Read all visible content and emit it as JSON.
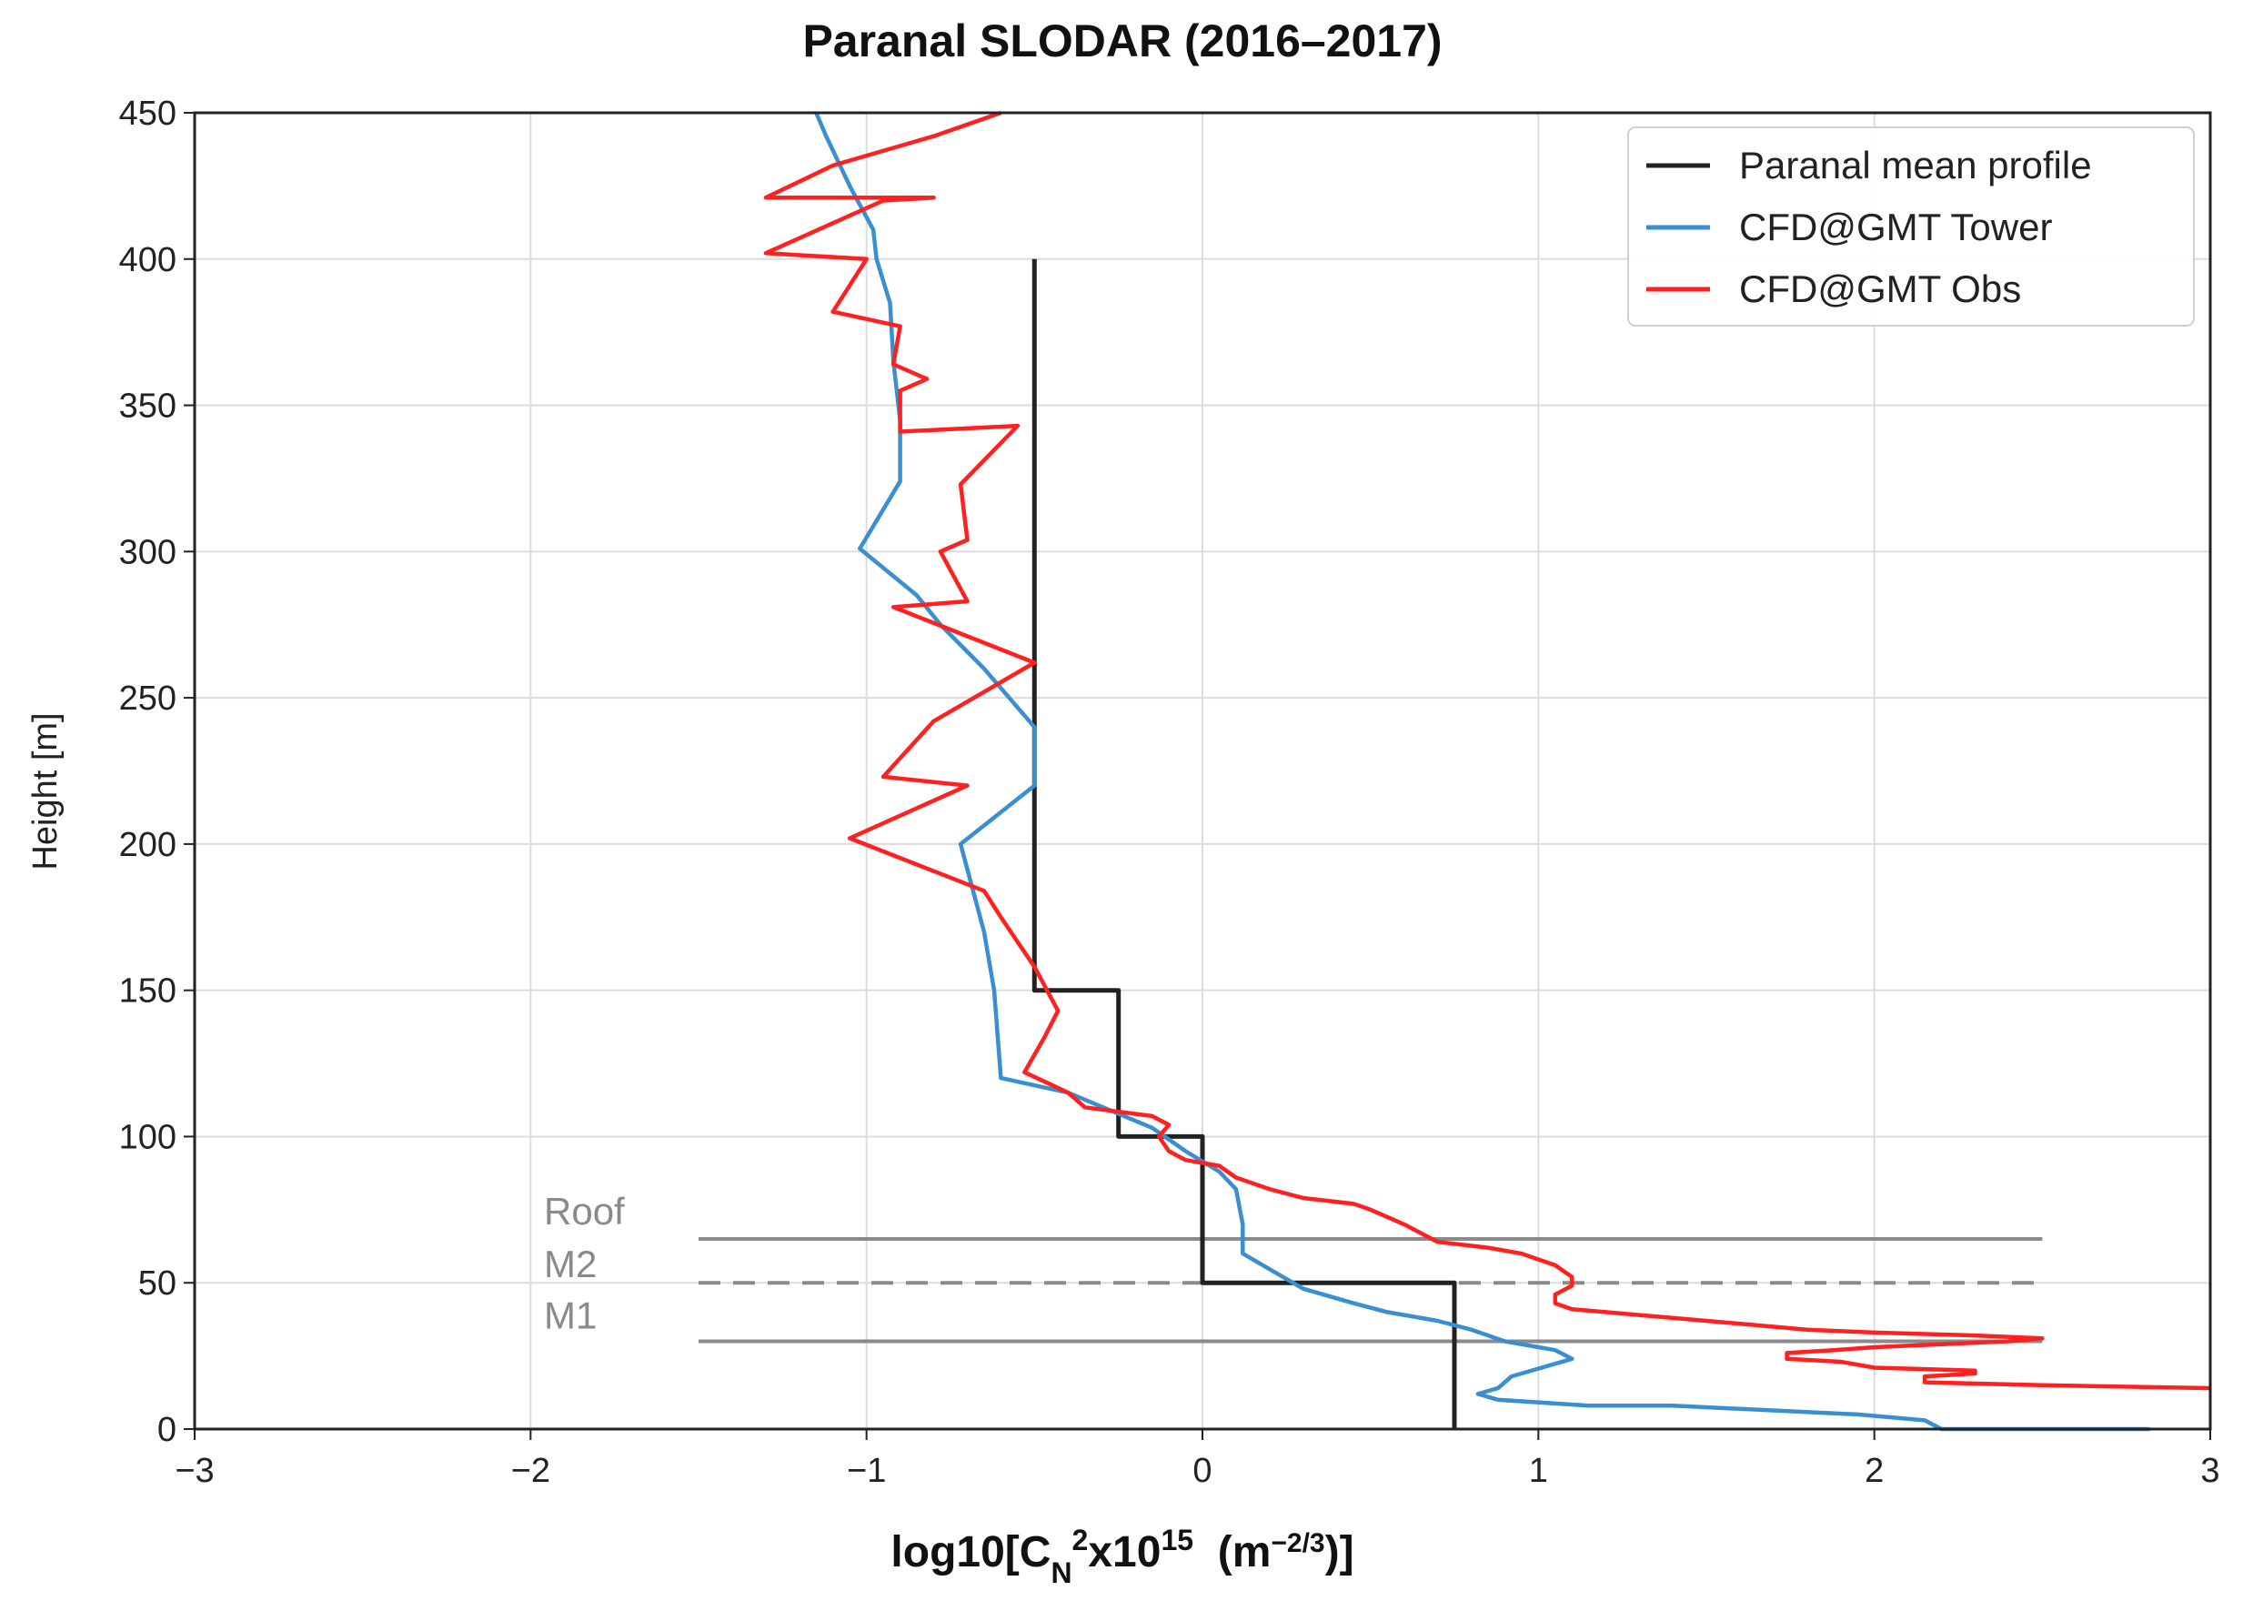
{
  "chart_data": {
    "type": "line",
    "title": "Paranal  SLODAR  (2016–2017)",
    "xlabel": {
      "prefix": "log10[C",
      "sub": "N",
      "sup": "2",
      "mid": "x10",
      "sup2": "15",
      "unit_open": "  (m",
      "unit_sup": "−2/3",
      "unit_close": ")]"
    },
    "ylabel": "Height [m]",
    "xlim": [
      -3,
      3
    ],
    "ylim": [
      0,
      450
    ],
    "xticks": [
      -3,
      -2,
      -1,
      0,
      1,
      2,
      3
    ],
    "xtick_labels": [
      "−3",
      "−2",
      "−1",
      "0",
      "1",
      "2",
      "3"
    ],
    "yticks": [
      0,
      50,
      100,
      150,
      200,
      250,
      300,
      350,
      400,
      450
    ],
    "ytick_labels": [
      "0",
      "50",
      "100",
      "150",
      "200",
      "250",
      "300",
      "350",
      "400",
      "450"
    ],
    "grid": true,
    "legend_position": "top-right",
    "series": [
      {
        "name": "Paranal mean profile",
        "color": "#222222",
        "points": [
          [
            0.75,
            0
          ],
          [
            0.75,
            50
          ],
          [
            0.0,
            50
          ],
          [
            0.0,
            100
          ],
          [
            -0.25,
            100
          ],
          [
            -0.25,
            150
          ],
          [
            -0.5,
            150
          ],
          [
            -0.5,
            400
          ]
        ]
      },
      {
        "name": "CFD@GMT Tower",
        "color": "#3a8fd0",
        "points": [
          [
            2.82,
            0
          ],
          [
            2.2,
            0
          ],
          [
            2.15,
            3
          ],
          [
            1.95,
            5
          ],
          [
            1.4,
            8
          ],
          [
            1.15,
            8
          ],
          [
            0.88,
            10
          ],
          [
            0.82,
            12
          ],
          [
            0.88,
            14
          ],
          [
            0.92,
            18
          ],
          [
            1.1,
            24
          ],
          [
            1.05,
            27
          ],
          [
            0.9,
            30
          ],
          [
            0.8,
            34
          ],
          [
            0.7,
            37
          ],
          [
            0.55,
            40
          ],
          [
            0.45,
            43
          ],
          [
            0.3,
            48
          ],
          [
            0.12,
            60
          ],
          [
            0.12,
            70
          ],
          [
            0.1,
            82
          ],
          [
            0.05,
            88
          ],
          [
            -0.05,
            95
          ],
          [
            -0.15,
            103
          ],
          [
            -0.4,
            115
          ],
          [
            -0.6,
            120
          ],
          [
            -0.62,
            150
          ],
          [
            -0.65,
            170
          ],
          [
            -0.72,
            200
          ],
          [
            -0.5,
            220
          ],
          [
            -0.5,
            240
          ],
          [
            -0.65,
            260
          ],
          [
            -0.78,
            275
          ],
          [
            -0.85,
            285
          ],
          [
            -1.02,
            301
          ],
          [
            -0.9,
            324
          ],
          [
            -0.9,
            345
          ],
          [
            -0.92,
            365
          ],
          [
            -0.93,
            385
          ],
          [
            -0.97,
            400
          ],
          [
            -0.98,
            410
          ],
          [
            -1.05,
            425
          ],
          [
            -1.12,
            442
          ],
          [
            -1.15,
            450
          ]
        ]
      },
      {
        "name": "CFD@GMT Obs",
        "color": "#ff2020",
        "points": [
          [
            3.0,
            14
          ],
          [
            2.5,
            15
          ],
          [
            2.15,
            16
          ],
          [
            2.15,
            18
          ],
          [
            2.3,
            19
          ],
          [
            2.3,
            20
          ],
          [
            2.0,
            21
          ],
          [
            1.9,
            23
          ],
          [
            1.74,
            24
          ],
          [
            1.74,
            26
          ],
          [
            1.88,
            27
          ],
          [
            2.0,
            28
          ],
          [
            2.2,
            29
          ],
          [
            2.4,
            30
          ],
          [
            2.5,
            31
          ],
          [
            2.3,
            32
          ],
          [
            2.0,
            33
          ],
          [
            1.8,
            34
          ],
          [
            1.5,
            37
          ],
          [
            1.3,
            39
          ],
          [
            1.2,
            40
          ],
          [
            1.1,
            41
          ],
          [
            1.05,
            43
          ],
          [
            1.05,
            46
          ],
          [
            1.1,
            49
          ],
          [
            1.1,
            52
          ],
          [
            1.05,
            56
          ],
          [
            0.95,
            60
          ],
          [
            0.85,
            62
          ],
          [
            0.7,
            64
          ],
          [
            0.6,
            70
          ],
          [
            0.5,
            75
          ],
          [
            0.45,
            77
          ],
          [
            0.3,
            79
          ],
          [
            0.2,
            82
          ],
          [
            0.1,
            86
          ],
          [
            0.05,
            90
          ],
          [
            -0.05,
            92
          ],
          [
            -0.1,
            95
          ],
          [
            -0.13,
            100
          ],
          [
            -0.1,
            104
          ],
          [
            -0.15,
            107
          ],
          [
            -0.35,
            110
          ],
          [
            -0.4,
            115
          ],
          [
            -0.53,
            122
          ],
          [
            -0.47,
            134
          ],
          [
            -0.43,
            143
          ],
          [
            -0.5,
            158
          ],
          [
            -0.6,
            175
          ],
          [
            -0.65,
            184
          ],
          [
            -1.05,
            202
          ],
          [
            -0.7,
            220
          ],
          [
            -0.95,
            223
          ],
          [
            -0.8,
            242
          ],
          [
            -0.5,
            262
          ],
          [
            -0.92,
            281
          ],
          [
            -0.7,
            283
          ],
          [
            -0.78,
            300
          ],
          [
            -0.7,
            304
          ],
          [
            -0.72,
            323
          ],
          [
            -0.55,
            343
          ],
          [
            -0.9,
            341
          ],
          [
            -0.9,
            355
          ],
          [
            -0.82,
            359
          ],
          [
            -0.92,
            364
          ],
          [
            -0.9,
            377
          ],
          [
            -1.1,
            382
          ],
          [
            -1.0,
            400
          ],
          [
            -1.3,
            402
          ],
          [
            -0.95,
            420
          ],
          [
            -0.8,
            421
          ],
          [
            -1.3,
            421
          ],
          [
            -1.1,
            432
          ],
          [
            -0.8,
            442
          ],
          [
            -0.6,
            450
          ]
        ]
      }
    ],
    "reference_lines": [
      {
        "label": "Roof",
        "y": 65,
        "x_from": -1.5,
        "x_to": 2.5,
        "style": "solid",
        "color": "#8a8a8a"
      },
      {
        "label": "M2",
        "y": 50,
        "x_from": -1.5,
        "x_to": 2.5,
        "style": "dashed",
        "color": "#8a8a8a"
      },
      {
        "label": "M1",
        "y": 30,
        "x_from": -1.5,
        "x_to": 2.5,
        "style": "solid",
        "color": "#8a8a8a"
      }
    ]
  }
}
